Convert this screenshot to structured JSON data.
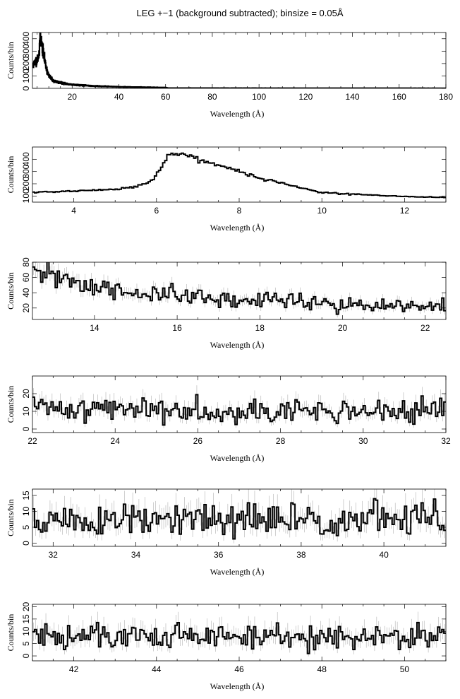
{
  "figure": {
    "title": "LEG +−1 (background subtracted); binsize = 0.05Å"
  },
  "chart_data": [
    {
      "type": "line",
      "xlabel": "Wavelength (Å)",
      "ylabel": "Counts/bin",
      "xlim": [
        3,
        180
      ],
      "ylim": [
        0,
        450
      ],
      "xticks": [
        20,
        40,
        60,
        80,
        100,
        120,
        140,
        160,
        180
      ],
      "yticks": [
        0,
        100,
        200,
        300,
        400
      ],
      "anchors": [
        [
          3,
          180
        ],
        [
          5,
          230
        ],
        [
          6,
          290
        ],
        [
          6.3,
          450
        ],
        [
          6.6,
          400
        ],
        [
          7,
          350
        ],
        [
          8,
          250
        ],
        [
          9,
          160
        ],
        [
          10,
          100
        ],
        [
          12,
          60
        ],
        [
          15,
          45
        ],
        [
          20,
          30
        ],
        [
          30,
          18
        ],
        [
          40,
          12
        ],
        [
          50,
          9
        ],
        [
          60,
          6
        ],
        [
          61,
          2
        ],
        [
          180,
          1
        ]
      ],
      "noise": 0.15,
      "errors": false,
      "seed": 11
    },
    {
      "type": "line",
      "xlabel": "Wavelength (Å)",
      "ylabel": "Counts/bin",
      "xlim": [
        3,
        13
      ],
      "ylim": [
        50,
        500
      ],
      "xticks": [
        4,
        6,
        8,
        10,
        12
      ],
      "yticks": [
        100,
        200,
        300,
        400
      ],
      "anchors": [
        [
          3,
          130
        ],
        [
          4,
          140
        ],
        [
          5,
          155
        ],
        [
          5.5,
          175
        ],
        [
          5.9,
          225
        ],
        [
          6.1,
          330
        ],
        [
          6.3,
          440
        ],
        [
          6.5,
          460
        ],
        [
          6.8,
          430
        ],
        [
          7,
          400
        ],
        [
          7.5,
          350
        ],
        [
          8,
          300
        ],
        [
          8.5,
          245
        ],
        [
          9,
          210
        ],
        [
          9.5,
          165
        ],
        [
          10,
          130
        ],
        [
          11,
          110
        ],
        [
          12,
          95
        ],
        [
          13,
          90
        ]
      ],
      "noise": 0.04,
      "errors": false,
      "seed": 21
    },
    {
      "type": "line",
      "xlabel": "Wavelength (Å)",
      "ylabel": "Counts/bin",
      "xlim": [
        12.5,
        22.5
      ],
      "ylim": [
        5,
        80
      ],
      "xticks": [
        14,
        16,
        18,
        20,
        22
      ],
      "yticks": [
        20,
        40,
        60,
        80
      ],
      "anchors": [
        [
          12.5,
          62
        ],
        [
          13,
          63
        ],
        [
          13.5,
          55
        ],
        [
          14,
          45
        ],
        [
          15,
          40
        ],
        [
          16,
          36
        ],
        [
          17,
          30
        ],
        [
          18,
          29
        ],
        [
          18.5,
          35
        ],
        [
          19,
          30
        ],
        [
          20,
          24
        ],
        [
          21,
          22
        ],
        [
          22,
          21
        ],
        [
          22.5,
          20
        ]
      ],
      "noise": 0.2,
      "errors": true,
      "seed": 31
    },
    {
      "type": "line",
      "xlabel": "Wavelength (Å)",
      "ylabel": "Counts/bin",
      "xlim": [
        22,
        32
      ],
      "ylim": [
        -2,
        30
      ],
      "xticks": [
        22,
        24,
        26,
        28,
        30,
        32
      ],
      "yticks": [
        0,
        10,
        20
      ],
      "anchors": [
        [
          22,
          12
        ],
        [
          26,
          11
        ],
        [
          28,
          10
        ],
        [
          32,
          10
        ]
      ],
      "noise": 0.35,
      "errors": true,
      "seed": 41
    },
    {
      "type": "line",
      "xlabel": "Wavelength (Å)",
      "ylabel": "Counts/bin",
      "xlim": [
        31.5,
        41.5
      ],
      "ylim": [
        -1,
        17
      ],
      "xticks": [
        32,
        34,
        36,
        38,
        40
      ],
      "yticks": [
        0,
        5,
        10,
        15
      ],
      "anchors": [
        [
          31.5,
          7
        ],
        [
          36,
          7
        ],
        [
          41.5,
          8
        ]
      ],
      "noise": 0.35,
      "errors": true,
      "seed": 51
    },
    {
      "type": "line",
      "xlabel": "Wavelength (Å)",
      "ylabel": "Counts/bin",
      "xlim": [
        41,
        51
      ],
      "ylim": [
        -2,
        21
      ],
      "xticks": [
        42,
        44,
        46,
        48,
        50
      ],
      "yticks": [
        0,
        5,
        10,
        15,
        20
      ],
      "anchors": [
        [
          41,
          8
        ],
        [
          46,
          8
        ],
        [
          51,
          8
        ]
      ],
      "noise": 0.35,
      "errors": true,
      "seed": 61
    }
  ]
}
